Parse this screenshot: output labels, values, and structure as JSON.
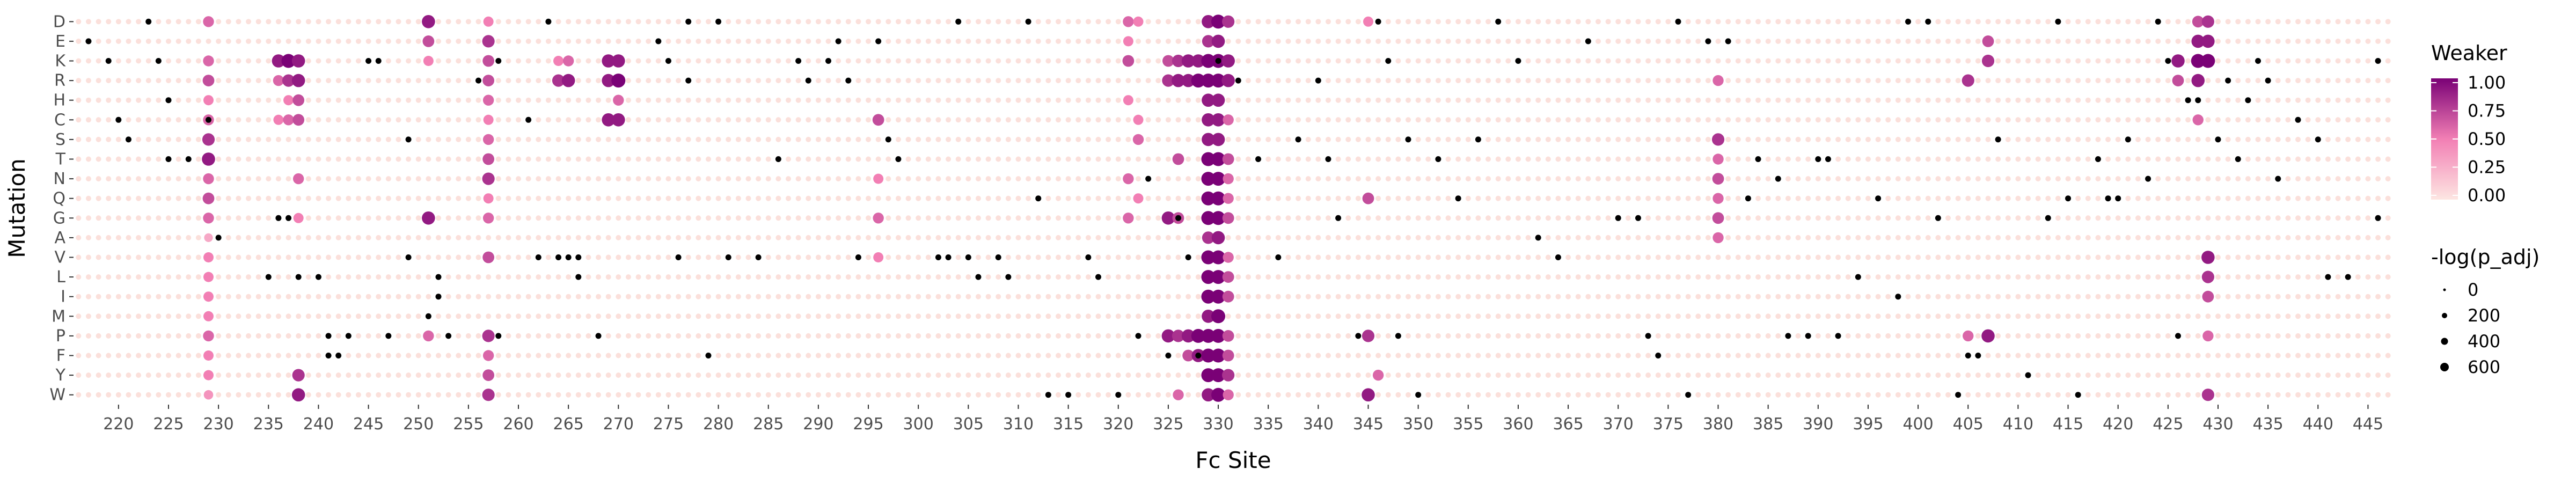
{
  "chart_data": {
    "type": "scatter",
    "subtype": "dot-matrix",
    "xlabel": "Fc Site",
    "ylabel": "Mutation",
    "x_range": [
      216,
      447
    ],
    "x_ticks": [
      220,
      225,
      230,
      235,
      240,
      245,
      250,
      255,
      260,
      265,
      270,
      275,
      280,
      285,
      290,
      295,
      300,
      305,
      310,
      315,
      320,
      325,
      330,
      335,
      340,
      345,
      350,
      355,
      360,
      365,
      370,
      375,
      380,
      385,
      390,
      395,
      400,
      405,
      410,
      415,
      420,
      425,
      430,
      435,
      440,
      445
    ],
    "y_categories": [
      "D",
      "E",
      "K",
      "R",
      "H",
      "C",
      "S",
      "T",
      "N",
      "Q",
      "G",
      "A",
      "V",
      "L",
      "I",
      "M",
      "P",
      "F",
      "Y",
      "W"
    ],
    "color_legend": {
      "title": "Weaker",
      "min": 0,
      "max": 1,
      "ticks": [
        "1.00",
        "0.75",
        "0.50",
        "0.25",
        "0.00"
      ]
    },
    "size_legend": {
      "title": "-log(p_adj)",
      "labels": [
        "0",
        "200",
        "400",
        "600"
      ]
    },
    "strong_columns": [
      {
        "x": 229,
        "rows": {
          "D": 0.6,
          "K": 0.6,
          "R": 0.7,
          "H": 0.5,
          "C": 0.6,
          "S": 0.8,
          "T": 0.9,
          "N": 0.6,
          "Q": 0.7,
          "G": 0.6,
          "A": 0.3,
          "V": 0.5,
          "L": 0.5,
          "I": 0.5,
          "M": 0.5,
          "P": 0.6,
          "F": 0.5,
          "Y": 0.5,
          "W": 0.4
        }
      },
      {
        "x": 236,
        "rows": {
          "K": 0.9,
          "R": 0.6,
          "C": 0.5
        }
      },
      {
        "x": 237,
        "rows": {
          "K": 1.0,
          "R": 0.8,
          "C": 0.6,
          "H": 0.5
        }
      },
      {
        "x": 238,
        "rows": {
          "K": 0.9,
          "R": 0.9,
          "C": 0.7,
          "H": 0.7,
          "N": 0.6,
          "G": 0.5,
          "Y": 0.8,
          "W": 0.9
        }
      },
      {
        "x": 251,
        "rows": {
          "D": 0.9,
          "E": 0.7,
          "K": 0.5,
          "G": 0.9,
          "P": 0.6
        }
      },
      {
        "x": 257,
        "rows": {
          "D": 0.5,
          "E": 0.8,
          "K": 0.7,
          "R": 0.7,
          "H": 0.6,
          "C": 0.5,
          "S": 0.6,
          "T": 0.7,
          "N": 0.8,
          "Q": 0.5,
          "G": 0.6,
          "V": 0.7,
          "P": 0.8,
          "F": 0.6,
          "Y": 0.7,
          "W": 0.8
        }
      },
      {
        "x": 264,
        "rows": {
          "K": 0.5,
          "R": 0.8
        }
      },
      {
        "x": 265,
        "rows": {
          "K": 0.6,
          "R": 0.9
        }
      },
      {
        "x": 269,
        "rows": {
          "K": 0.9,
          "R": 0.9,
          "C": 0.9
        }
      },
      {
        "x": 270,
        "rows": {
          "K": 0.9,
          "R": 1.0,
          "C": 0.9,
          "H": 0.6
        }
      },
      {
        "x": 296,
        "rows": {
          "C": 0.7,
          "N": 0.5,
          "G": 0.6,
          "V": 0.5
        }
      },
      {
        "x": 321,
        "rows": {
          "D": 0.6,
          "E": 0.5,
          "K": 0.7,
          "H": 0.5,
          "N": 0.6,
          "G": 0.6
        }
      },
      {
        "x": 322,
        "rows": {
          "D": 0.5,
          "C": 0.5,
          "S": 0.6,
          "Q": 0.5
        }
      },
      {
        "x": 325,
        "rows": {
          "K": 0.7,
          "R": 0.8,
          "G": 0.9,
          "P": 0.9
        }
      },
      {
        "x": 326,
        "rows": {
          "K": 0.8,
          "R": 0.9,
          "T": 0.7,
          "G": 0.7,
          "P": 0.8,
          "W": 0.6
        }
      },
      {
        "x": 327,
        "rows": {
          "K": 0.9,
          "R": 0.9,
          "P": 0.9,
          "F": 0.7
        }
      },
      {
        "x": 328,
        "rows": {
          "K": 0.9,
          "R": 1.0,
          "P": 1.0,
          "F": 0.9
        }
      },
      {
        "x": 329,
        "rows": {
          "D": 0.9,
          "E": 0.8,
          "K": 1.0,
          "R": 1.0,
          "H": 0.9,
          "C": 0.9,
          "S": 0.9,
          "T": 1.0,
          "N": 1.0,
          "Q": 1.0,
          "G": 1.0,
          "A": 0.8,
          "V": 1.0,
          "L": 1.0,
          "I": 1.0,
          "M": 0.9,
          "P": 1.0,
          "F": 1.0,
          "Y": 1.0,
          "W": 0.9
        }
      },
      {
        "x": 330,
        "rows": {
          "D": 1.0,
          "E": 0.9,
          "K": 1.0,
          "R": 1.0,
          "H": 0.9,
          "C": 0.9,
          "S": 0.9,
          "T": 1.0,
          "N": 1.0,
          "Q": 1.0,
          "G": 1.0,
          "A": 0.9,
          "V": 1.0,
          "L": 1.0,
          "I": 1.0,
          "M": 1.0,
          "P": 1.0,
          "F": 1.0,
          "Y": 1.0,
          "W": 1.0
        }
      },
      {
        "x": 331,
        "rows": {
          "D": 0.8,
          "K": 0.9,
          "R": 0.9,
          "C": 0.6,
          "T": 0.7,
          "N": 0.6,
          "Q": 0.6,
          "G": 0.7,
          "V": 0.6,
          "L": 0.7,
          "I": 0.7,
          "P": 0.7,
          "F": 0.7,
          "Y": 0.8,
          "W": 0.6
        }
      },
      {
        "x": 345,
        "rows": {
          "D": 0.5,
          "Q": 0.7,
          "P": 0.8,
          "W": 0.9
        }
      },
      {
        "x": 346,
        "rows": {
          "Y": 0.6
        }
      },
      {
        "x": 380,
        "rows": {
          "R": 0.6,
          "S": 0.8,
          "T": 0.6,
          "N": 0.7,
          "Q": 0.6,
          "G": 0.7,
          "A": 0.6
        }
      },
      {
        "x": 405,
        "rows": {
          "R": 0.8,
          "P": 0.6
        }
      },
      {
        "x": 407,
        "rows": {
          "E": 0.7,
          "K": 0.8,
          "P": 0.9
        }
      },
      {
        "x": 426,
        "rows": {
          "K": 0.9,
          "R": 0.7
        }
      },
      {
        "x": 428,
        "rows": {
          "D": 0.7,
          "E": 0.9,
          "K": 1.0,
          "R": 0.9,
          "C": 0.6
        }
      },
      {
        "x": 429,
        "rows": {
          "D": 0.8,
          "E": 0.9,
          "K": 1.0,
          "V": 0.9,
          "L": 0.8,
          "I": 0.7,
          "P": 0.6,
          "W": 0.8
        }
      }
    ],
    "significant_black_points": [
      {
        "x": 217,
        "y": "E"
      },
      {
        "x": 219,
        "y": "K"
      },
      {
        "x": 220,
        "y": "C"
      },
      {
        "x": 221,
        "y": "S"
      },
      {
        "x": 223,
        "y": "D"
      },
      {
        "x": 224,
        "y": "K"
      },
      {
        "x": 225,
        "y": "H"
      },
      {
        "x": 225,
        "y": "T"
      },
      {
        "x": 227,
        "y": "T"
      },
      {
        "x": 229,
        "y": "C"
      },
      {
        "x": 230,
        "y": "A"
      },
      {
        "x": 236,
        "y": "G"
      },
      {
        "x": 237,
        "y": "G"
      },
      {
        "x": 235,
        "y": "L"
      },
      {
        "x": 238,
        "y": "L"
      },
      {
        "x": 240,
        "y": "L"
      },
      {
        "x": 241,
        "y": "F"
      },
      {
        "x": 242,
        "y": "F"
      },
      {
        "x": 241,
        "y": "P"
      },
      {
        "x": 243,
        "y": "P"
      },
      {
        "x": 245,
        "y": "K"
      },
      {
        "x": 246,
        "y": "K"
      },
      {
        "x": 247,
        "y": "P"
      },
      {
        "x": 249,
        "y": "S"
      },
      {
        "x": 249,
        "y": "V"
      },
      {
        "x": 251,
        "y": "M"
      },
      {
        "x": 252,
        "y": "L"
      },
      {
        "x": 252,
        "y": "I"
      },
      {
        "x": 253,
        "y": "P"
      },
      {
        "x": 256,
        "y": "R"
      },
      {
        "x": 258,
        "y": "K"
      },
      {
        "x": 258,
        "y": "P"
      },
      {
        "x": 261,
        "y": "C"
      },
      {
        "x": 262,
        "y": "V"
      },
      {
        "x": 263,
        "y": "D"
      },
      {
        "x": 264,
        "y": "V"
      },
      {
        "x": 265,
        "y": "V"
      },
      {
        "x": 266,
        "y": "V"
      },
      {
        "x": 266,
        "y": "L"
      },
      {
        "x": 268,
        "y": "P"
      },
      {
        "x": 274,
        "y": "E"
      },
      {
        "x": 275,
        "y": "K"
      },
      {
        "x": 276,
        "y": "V"
      },
      {
        "x": 277,
        "y": "R"
      },
      {
        "x": 277,
        "y": "D"
      },
      {
        "x": 279,
        "y": "F"
      },
      {
        "x": 280,
        "y": "D"
      },
      {
        "x": 281,
        "y": "V"
      },
      {
        "x": 284,
        "y": "V"
      },
      {
        "x": 286,
        "y": "T"
      },
      {
        "x": 288,
        "y": "K"
      },
      {
        "x": 289,
        "y": "R"
      },
      {
        "x": 291,
        "y": "K"
      },
      {
        "x": 292,
        "y": "E"
      },
      {
        "x": 293,
        "y": "R"
      },
      {
        "x": 294,
        "y": "V"
      },
      {
        "x": 296,
        "y": "E"
      },
      {
        "x": 297,
        "y": "S"
      },
      {
        "x": 298,
        "y": "T"
      },
      {
        "x": 302,
        "y": "V"
      },
      {
        "x": 303,
        "y": "V"
      },
      {
        "x": 304,
        "y": "D"
      },
      {
        "x": 305,
        "y": "V"
      },
      {
        "x": 306,
        "y": "L"
      },
      {
        "x": 308,
        "y": "V"
      },
      {
        "x": 309,
        "y": "L"
      },
      {
        "x": 311,
        "y": "D"
      },
      {
        "x": 312,
        "y": "Q"
      },
      {
        "x": 313,
        "y": "W"
      },
      {
        "x": 315,
        "y": "W"
      },
      {
        "x": 317,
        "y": "V"
      },
      {
        "x": 318,
        "y": "L"
      },
      {
        "x": 320,
        "y": "W"
      },
      {
        "x": 322,
        "y": "P"
      },
      {
        "x": 323,
        "y": "N"
      },
      {
        "x": 325,
        "y": "F"
      },
      {
        "x": 326,
        "y": "G"
      },
      {
        "x": 327,
        "y": "V"
      },
      {
        "x": 328,
        "y": "F"
      },
      {
        "x": 330,
        "y": "K"
      },
      {
        "x": 332,
        "y": "R"
      },
      {
        "x": 334,
        "y": "T"
      },
      {
        "x": 336,
        "y": "V"
      },
      {
        "x": 338,
        "y": "S"
      },
      {
        "x": 340,
        "y": "R"
      },
      {
        "x": 341,
        "y": "T"
      },
      {
        "x": 342,
        "y": "G"
      },
      {
        "x": 344,
        "y": "P"
      },
      {
        "x": 346,
        "y": "D"
      },
      {
        "x": 347,
        "y": "K"
      },
      {
        "x": 348,
        "y": "P"
      },
      {
        "x": 349,
        "y": "S"
      },
      {
        "x": 350,
        "y": "W"
      },
      {
        "x": 352,
        "y": "T"
      },
      {
        "x": 354,
        "y": "Q"
      },
      {
        "x": 356,
        "y": "S"
      },
      {
        "x": 358,
        "y": "D"
      },
      {
        "x": 360,
        "y": "K"
      },
      {
        "x": 362,
        "y": "A"
      },
      {
        "x": 364,
        "y": "V"
      },
      {
        "x": 367,
        "y": "E"
      },
      {
        "x": 370,
        "y": "G"
      },
      {
        "x": 372,
        "y": "G"
      },
      {
        "x": 373,
        "y": "P"
      },
      {
        "x": 374,
        "y": "F"
      },
      {
        "x": 376,
        "y": "D"
      },
      {
        "x": 377,
        "y": "W"
      },
      {
        "x": 379,
        "y": "E"
      },
      {
        "x": 381,
        "y": "E"
      },
      {
        "x": 383,
        "y": "Q"
      },
      {
        "x": 384,
        "y": "T"
      },
      {
        "x": 386,
        "y": "N"
      },
      {
        "x": 387,
        "y": "P"
      },
      {
        "x": 389,
        "y": "P"
      },
      {
        "x": 390,
        "y": "T"
      },
      {
        "x": 391,
        "y": "T"
      },
      {
        "x": 392,
        "y": "P"
      },
      {
        "x": 394,
        "y": "L"
      },
      {
        "x": 396,
        "y": "Q"
      },
      {
        "x": 398,
        "y": "I"
      },
      {
        "x": 399,
        "y": "D"
      },
      {
        "x": 401,
        "y": "D"
      },
      {
        "x": 402,
        "y": "G"
      },
      {
        "x": 404,
        "y": "W"
      },
      {
        "x": 405,
        "y": "F"
      },
      {
        "x": 406,
        "y": "F"
      },
      {
        "x": 408,
        "y": "S"
      },
      {
        "x": 411,
        "y": "Y"
      },
      {
        "x": 413,
        "y": "G"
      },
      {
        "x": 414,
        "y": "D"
      },
      {
        "x": 415,
        "y": "Q"
      },
      {
        "x": 416,
        "y": "W"
      },
      {
        "x": 418,
        "y": "T"
      },
      {
        "x": 419,
        "y": "Q"
      },
      {
        "x": 420,
        "y": "Q"
      },
      {
        "x": 421,
        "y": "S"
      },
      {
        "x": 423,
        "y": "N"
      },
      {
        "x": 424,
        "y": "D"
      },
      {
        "x": 425,
        "y": "K"
      },
      {
        "x": 426,
        "y": "P"
      },
      {
        "x": 427,
        "y": "H"
      },
      {
        "x": 428,
        "y": "H"
      },
      {
        "x": 430,
        "y": "S"
      },
      {
        "x": 431,
        "y": "R"
      },
      {
        "x": 432,
        "y": "T"
      },
      {
        "x": 433,
        "y": "H"
      },
      {
        "x": 434,
        "y": "K"
      },
      {
        "x": 435,
        "y": "R"
      },
      {
        "x": 436,
        "y": "N"
      },
      {
        "x": 438,
        "y": "C"
      },
      {
        "x": 440,
        "y": "S"
      },
      {
        "x": 441,
        "y": "L"
      },
      {
        "x": 443,
        "y": "L"
      },
      {
        "x": 446,
        "y": "K"
      },
      {
        "x": 446,
        "y": "G"
      }
    ]
  }
}
